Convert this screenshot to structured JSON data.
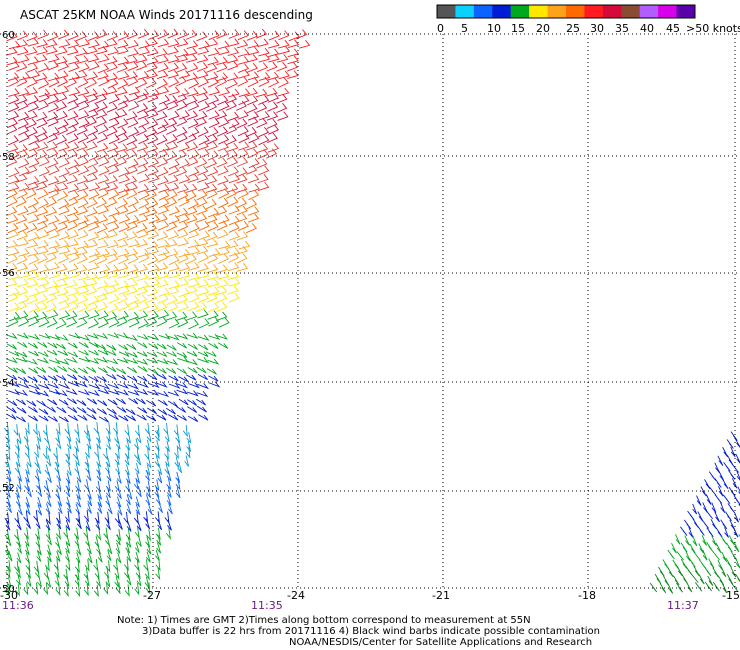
{
  "title": "ASCAT 25KM NOAA Winds 20171116 descending",
  "colorbar": {
    "colors": [
      "#555555",
      "#0bd1ff",
      "#0b64ff",
      "#001bd4",
      "#00a81e",
      "#ffe700",
      "#ffa21b",
      "#ff6a00",
      "#ff1b20",
      "#d60a39",
      "#8b4a32",
      "#b25dff",
      "#d800e8",
      "#5a00a8"
    ],
    "labels": [
      "0",
      "5",
      "10",
      "15",
      "20",
      "25",
      "30",
      "35",
      "40",
      "45",
      ">50 knots"
    ]
  },
  "map": {
    "lon_labels": [
      "-30",
      "-27",
      "-24",
      "-21",
      "-18",
      "-15"
    ],
    "lat_labels": [
      "60",
      "58",
      "56",
      "54",
      "52",
      "50"
    ]
  },
  "times": [
    "11:36",
    "11:35",
    "11:37"
  ],
  "notes": [
    "Note: 1) Times are GMT 2)Times along bottom correspond to measurement at 55N",
    "3)Data buffer is 22 hrs from 20171116 4) Black wind barbs indicate possible contamination",
    "NOAA/NESDIS/Center for Satellite Applications and Research"
  ]
}
